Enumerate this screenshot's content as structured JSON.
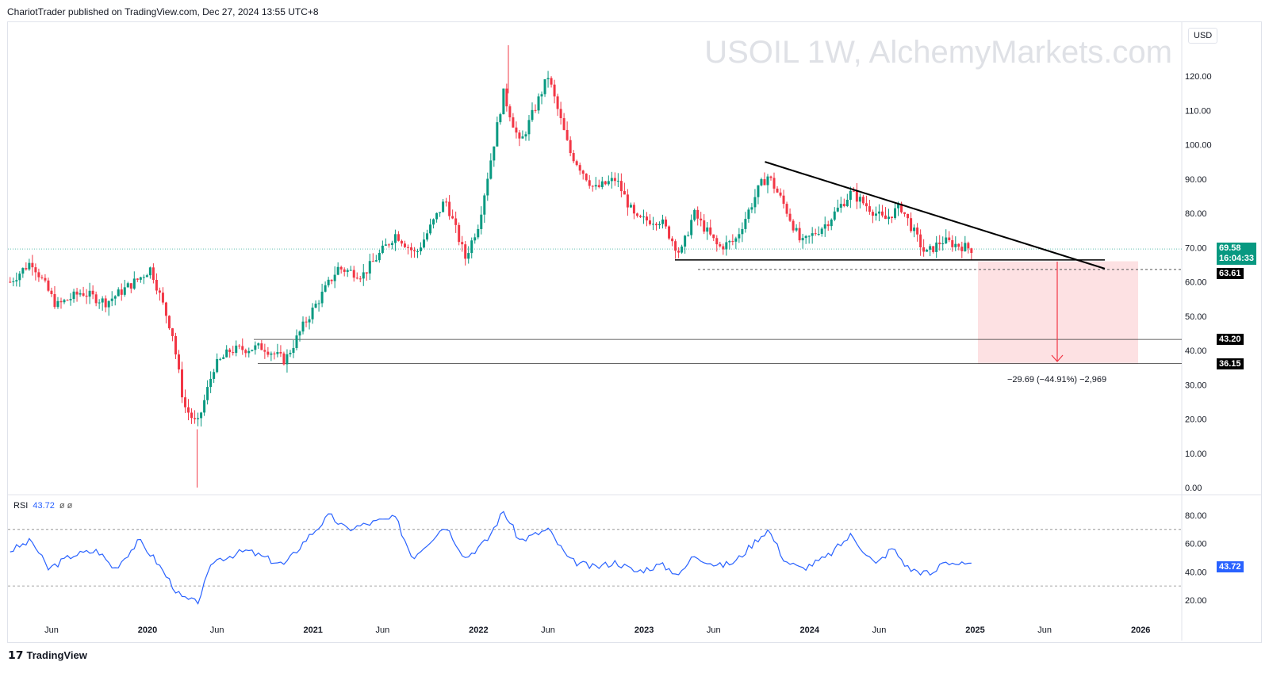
{
  "header": {
    "published": "ChariotTrader published on TradingView.com, Dec 27, 2024 13:55 UTC+8",
    "currency": "USD",
    "watermark": "USOIL 1W, AlchemyMarkets.com"
  },
  "price_tags": {
    "last": "69.58",
    "countdown": "16:04:33",
    "support": "63.61",
    "level1": "43.20",
    "level2": "36.15"
  },
  "measure_label": "−29.69 (−44.91%) −2,969",
  "rsi": {
    "label": "RSI",
    "value": "43.72",
    "params": "ø ø",
    "tag": "43.72"
  },
  "footer": {
    "brand": "TradingView"
  },
  "colors": {
    "up": "#089981",
    "down": "#f23645",
    "rsi": "#2962ff",
    "last": "#089981"
  },
  "chart_data": {
    "type": "candlestick",
    "title": "USOIL 1W",
    "y_ticks": [
      "120.00",
      "110.00",
      "100.00",
      "90.00",
      "80.00",
      "70.00",
      "60.00",
      "50.00",
      "40.00",
      "30.00",
      "20.00",
      "10.00",
      "0.00"
    ],
    "ylim": [
      0,
      128
    ],
    "x_ticks": [
      "Jun",
      "2020",
      "Jun",
      "2021",
      "Jun",
      "2022",
      "Jun",
      "2023",
      "Jun",
      "2024",
      "Jun",
      "2025",
      "Jun",
      "2026"
    ],
    "x_tick_years": [
      2019.42,
      2020,
      2020.42,
      2021,
      2021.42,
      2022,
      2022.42,
      2023,
      2023.42,
      2024,
      2024.42,
      2025,
      2025.42,
      2026
    ],
    "price_path": [
      [
        2019.17,
        60
      ],
      [
        2019.3,
        66
      ],
      [
        2019.45,
        53
      ],
      [
        2019.6,
        57
      ],
      [
        2019.75,
        54
      ],
      [
        2019.95,
        61
      ],
      [
        2020.02,
        64
      ],
      [
        2020.15,
        45
      ],
      [
        2020.22,
        24
      ],
      [
        2020.3,
        18
      ],
      [
        2020.4,
        35
      ],
      [
        2020.5,
        40
      ],
      [
        2020.7,
        41
      ],
      [
        2020.83,
        37
      ],
      [
        2020.95,
        48
      ],
      [
        2021.15,
        64
      ],
      [
        2021.3,
        62
      ],
      [
        2021.5,
        74
      ],
      [
        2021.62,
        68
      ],
      [
        2021.8,
        84
      ],
      [
        2021.92,
        67
      ],
      [
        2022.0,
        77
      ],
      [
        2022.15,
        115
      ],
      [
        2022.25,
        100
      ],
      [
        2022.42,
        120
      ],
      [
        2022.55,
        98
      ],
      [
        2022.7,
        87
      ],
      [
        2022.83,
        90
      ],
      [
        2022.95,
        78
      ],
      [
        2023.1,
        78
      ],
      [
        2023.22,
        68
      ],
      [
        2023.3,
        80
      ],
      [
        2023.45,
        70
      ],
      [
        2023.55,
        72
      ],
      [
        2023.7,
        88
      ],
      [
        2023.75,
        91
      ],
      [
        2023.85,
        82
      ],
      [
        2023.95,
        71
      ],
      [
        2024.1,
        77
      ],
      [
        2024.25,
        86
      ],
      [
        2024.45,
        78
      ],
      [
        2024.55,
        82
      ],
      [
        2024.7,
        68
      ],
      [
        2024.8,
        72
      ],
      [
        2024.98,
        69.58
      ]
    ],
    "rsi_path": [
      [
        2019.17,
        55
      ],
      [
        2019.3,
        62
      ],
      [
        2019.4,
        42
      ],
      [
        2019.55,
        52
      ],
      [
        2019.7,
        55
      ],
      [
        2019.8,
        42
      ],
      [
        2019.95,
        62
      ],
      [
        2020.05,
        48
      ],
      [
        2020.2,
        22
      ],
      [
        2020.3,
        18
      ],
      [
        2020.4,
        48
      ],
      [
        2020.6,
        55
      ],
      [
        2020.75,
        48
      ],
      [
        2020.83,
        45
      ],
      [
        2020.95,
        62
      ],
      [
        2021.1,
        80
      ],
      [
        2021.2,
        70
      ],
      [
        2021.4,
        76
      ],
      [
        2021.5,
        78
      ],
      [
        2021.6,
        50
      ],
      [
        2021.8,
        73
      ],
      [
        2021.92,
        50
      ],
      [
        2022.05,
        62
      ],
      [
        2022.15,
        83
      ],
      [
        2022.25,
        62
      ],
      [
        2022.42,
        70
      ],
      [
        2022.55,
        48
      ],
      [
        2022.7,
        43
      ],
      [
        2022.83,
        47
      ],
      [
        2022.95,
        40
      ],
      [
        2023.1,
        45
      ],
      [
        2023.22,
        38
      ],
      [
        2023.3,
        52
      ],
      [
        2023.45,
        44
      ],
      [
        2023.55,
        47
      ],
      [
        2023.7,
        65
      ],
      [
        2023.75,
        70
      ],
      [
        2023.85,
        48
      ],
      [
        2023.95,
        42
      ],
      [
        2024.1,
        50
      ],
      [
        2024.25,
        66
      ],
      [
        2024.4,
        45
      ],
      [
        2024.5,
        57
      ],
      [
        2024.6,
        42
      ],
      [
        2024.75,
        38
      ],
      [
        2024.8,
        48
      ],
      [
        2024.98,
        43.72
      ]
    ],
    "rsi_ticks": [
      "80.00",
      "60.00",
      "40.00",
      "20.00"
    ],
    "rsi_bands": [
      70,
      30
    ],
    "annotations": {
      "trendline_start": [
        2023.73,
        95
      ],
      "trendline_end": [
        2025.77,
        66
      ],
      "support": 63.61,
      "levels": [
        43.2,
        36.15
      ],
      "target_zone": [
        36.15,
        66
      ]
    }
  }
}
